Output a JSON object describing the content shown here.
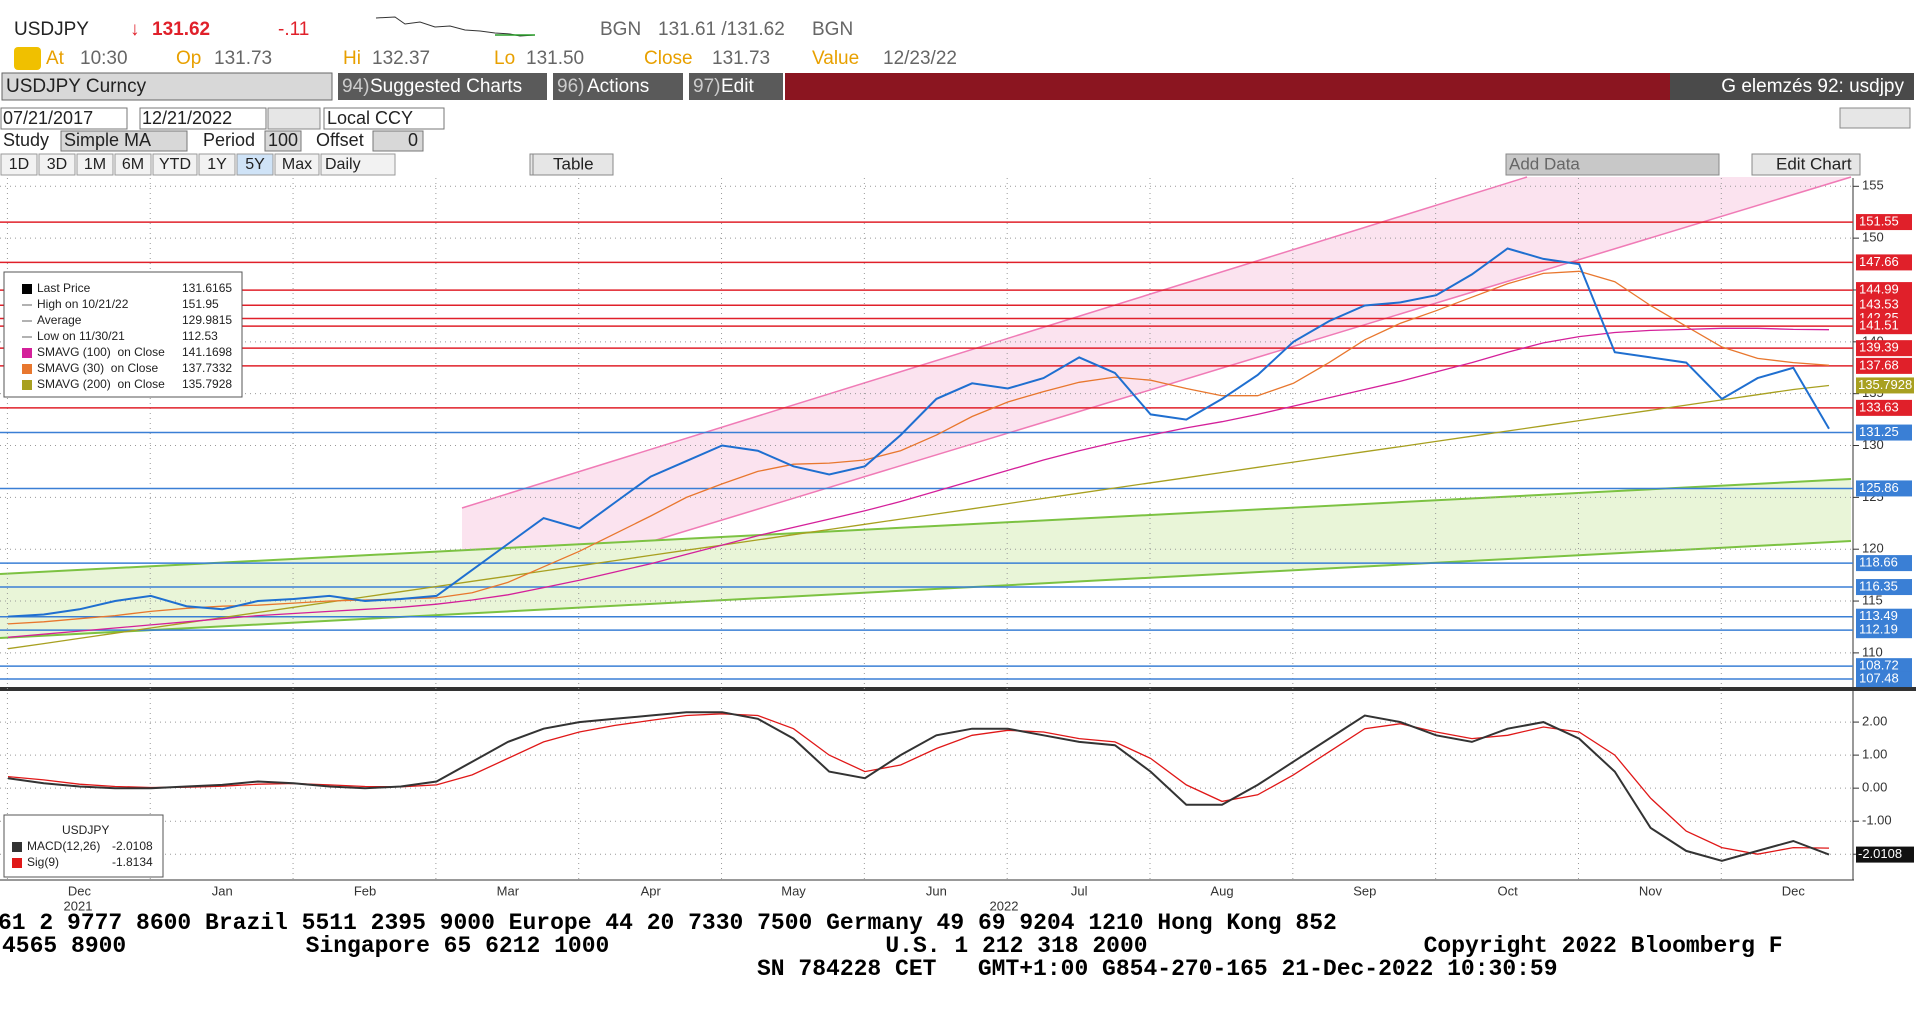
{
  "header": {
    "ticker": "USDJPY",
    "arrow": "↓",
    "price": "131.62",
    "change": "-.11",
    "source": "BGN",
    "bid_ask": "131.61 /131.62",
    "source2": "BGN",
    "at_label": "At",
    "at": "10:30",
    "op_label": "Op",
    "op": "131.73",
    "hi_label": "Hi",
    "hi": "132.37",
    "lo_label": "Lo",
    "lo": "131.50",
    "close_label": "Close",
    "close": "131.73",
    "value_label": "Value",
    "value": "12/23/22"
  },
  "toolbar": {
    "security": "USDJPY Curncy",
    "buttons": [
      {
        "num": "94)",
        "label": "Suggested Charts"
      },
      {
        "num": "96)",
        "label": "Actions"
      },
      {
        "num": "97)",
        "label": "Edit"
      }
    ],
    "title": "G elemzés 92: usdjpy"
  },
  "controls": {
    "start": "07/21/2017",
    "end": "12/21/2022",
    "currency": "Local CCY",
    "study_label": "Study",
    "study": "Simple MA",
    "period_label": "Period",
    "period": "100",
    "offset_label": "Offset",
    "offset": "0",
    "ranges": [
      "1D",
      "3D",
      "1M",
      "6M",
      "YTD",
      "1Y",
      "5Y",
      "Max"
    ],
    "frequency": "Daily",
    "table": "Table",
    "add_data": "Add Data",
    "edit_chart": "Edit Chart"
  },
  "chart_data": [
    {
      "type": "line",
      "categories": [
        null,
        null,
        "Dec",
        null,
        null,
        null,
        "Jan",
        null,
        null,
        null,
        "Feb",
        null,
        null,
        null,
        "Mar",
        null,
        null,
        null,
        "Apr",
        null,
        null,
        null,
        "May",
        null,
        null,
        null,
        "Jun",
        null,
        null,
        null,
        "Jul",
        null,
        null,
        null,
        "Aug",
        null,
        null,
        null,
        "Sep",
        null,
        null,
        null,
        "Oct",
        null,
        null,
        null,
        "Nov",
        null,
        null,
        null,
        "Dec",
        null
      ],
      "year_labels": [
        "2021",
        "2022"
      ],
      "ylim": [
        107,
        155.8
      ],
      "yticks": [
        110,
        115,
        120,
        125,
        130,
        135,
        140,
        145,
        150,
        155
      ],
      "grid": true,
      "series": [
        {
          "name": "Last Price",
          "color": "#1f6fd0",
          "values": [
            113.5,
            113.7,
            114.2,
            115.0,
            115.5,
            114.5,
            114.2,
            115.0,
            115.2,
            115.5,
            115.0,
            115.2,
            115.5,
            118,
            120.5,
            123,
            122,
            124.5,
            127,
            128.5,
            130,
            129.5,
            128,
            127.2,
            128,
            131,
            134.5,
            136,
            135.5,
            136.5,
            138.5,
            137,
            133,
            132.5,
            134.5,
            136.8,
            140,
            142,
            143.5,
            143.8,
            144.5,
            146.5,
            149,
            148,
            147.5,
            139,
            138.5,
            138,
            134.5,
            136.5,
            137.5,
            131.6165
          ]
        },
        {
          "name": "SMAVG (100)  on Close",
          "color": "#d4209a",
          "values": [
            111.5,
            111.8,
            112.1,
            112.4,
            112.7,
            113,
            113.3,
            113.6,
            113.8,
            114,
            114.2,
            114.4,
            114.7,
            115.1,
            115.6,
            116.3,
            117,
            117.8,
            118.6,
            119.5,
            120.4,
            121.3,
            122.1,
            122.9,
            123.7,
            124.6,
            125.6,
            126.6,
            127.6,
            128.6,
            129.5,
            130.3,
            131,
            131.7,
            132.3,
            133,
            133.8,
            134.6,
            135.4,
            136.2,
            137.1,
            138,
            139,
            139.9,
            140.5,
            140.9,
            141.1,
            141.2,
            141.3,
            141.3,
            141.2,
            141.1698
          ]
        },
        {
          "name": "SMAVG (30)  on Close",
          "color": "#e8772e",
          "values": [
            112.8,
            113.0,
            113.3,
            113.6,
            114,
            114.3,
            114.5,
            114.6,
            114.8,
            115,
            115.1,
            115.2,
            115.3,
            115.8,
            116.8,
            118.3,
            119.8,
            121.5,
            123.2,
            125,
            126.3,
            127.5,
            128.2,
            128.3,
            128.6,
            129.5,
            131,
            132.8,
            134.2,
            135.2,
            136.1,
            136.6,
            136.3,
            135.5,
            134.8,
            134.8,
            136,
            138,
            140.2,
            141.8,
            143,
            144.3,
            145.6,
            146.6,
            146.8,
            145.8,
            143.5,
            141.5,
            139.5,
            138.4,
            138.0,
            137.7332
          ]
        },
        {
          "name": "SMAVG (200)  on Close",
          "color": "#a8a020",
          "values": [
            110.4,
            110.9,
            111.4,
            111.9,
            112.4,
            112.9,
            113.4,
            113.9,
            114.4,
            114.9,
            115.4,
            115.9,
            116.4,
            116.9,
            117.4,
            117.9,
            118.4,
            118.9,
            119.4,
            119.9,
            120.4,
            120.9,
            121.4,
            121.9,
            122.4,
            122.9,
            123.4,
            123.9,
            124.4,
            124.9,
            125.4,
            125.9,
            126.4,
            126.9,
            127.4,
            127.9,
            128.4,
            128.9,
            129.4,
            129.9,
            130.4,
            130.9,
            131.4,
            131.9,
            132.4,
            132.9,
            133.4,
            133.9,
            134.4,
            134.9,
            135.4,
            135.7928
          ]
        }
      ],
      "stats": [
        {
          "label": "High on 10/21/22",
          "value": "151.95"
        },
        {
          "label": "Average",
          "value": "129.9815"
        },
        {
          "label": "Low on 11/30/21",
          "value": "112.53"
        }
      ],
      "levels": [
        {
          "value": 151.55,
          "color": "#e0202a"
        },
        {
          "value": 147.66,
          "color": "#e0202a"
        },
        {
          "value": 144.99,
          "color": "#e0202a"
        },
        {
          "value": 143.53,
          "color": "#e0202a"
        },
        {
          "value": 142.25,
          "color": "#e0202a"
        },
        {
          "value": 141.51,
          "color": "#e0202a"
        },
        {
          "value": 139.39,
          "color": "#e0202a"
        },
        {
          "value": 137.68,
          "color": "#e0202a"
        },
        {
          "value": 133.63,
          "color": "#e0202a"
        },
        {
          "value": 131.25,
          "color": "#3a7fd5"
        },
        {
          "value": 125.86,
          "color": "#3a7fd5"
        },
        {
          "value": 118.66,
          "color": "#3a7fd5"
        },
        {
          "value": 116.35,
          "color": "#3a7fd5"
        },
        {
          "value": 113.49,
          "color": "#3a7fd5"
        },
        {
          "value": 112.19,
          "color": "#3a7fd5"
        },
        {
          "value": 108.72,
          "color": "#3a7fd5"
        },
        {
          "value": 107.48,
          "color": "#3a7fd5"
        }
      ]
    },
    {
      "type": "line",
      "title": "USDJPY",
      "ylim": [
        -2.78,
        2.85
      ],
      "yticks": [
        {
          "value": 2,
          "label": "2.00"
        },
        {
          "value": 1,
          "label": "1.00"
        },
        {
          "value": 0,
          "label": "0.00"
        },
        {
          "value": -1,
          "label": "-1.00"
        },
        {
          "value": -2,
          "label": "-2.00"
        }
      ],
      "grid": true,
      "series": [
        {
          "name": "MACD(12,26)",
          "color": "#333333",
          "values": [
            0.3,
            0.15,
            0.05,
            0.0,
            0.0,
            0.05,
            0.1,
            0.2,
            0.15,
            0.05,
            0.0,
            0.05,
            0.2,
            0.8,
            1.4,
            1.8,
            2.0,
            2.1,
            2.2,
            2.3,
            2.3,
            2.1,
            1.5,
            0.5,
            0.3,
            1.0,
            1.6,
            1.8,
            1.8,
            1.6,
            1.4,
            1.3,
            0.5,
            -0.5,
            -0.5,
            0.1,
            0.8,
            1.5,
            2.2,
            2.0,
            1.6,
            1.4,
            1.8,
            2.0,
            1.5,
            0.5,
            -1.2,
            -1.9,
            -2.2,
            -1.9,
            -1.6,
            -2.0108
          ]
        },
        {
          "name": "Sig(9)",
          "color": "#e01818",
          "values": [
            0.35,
            0.25,
            0.12,
            0.05,
            0.02,
            0.03,
            0.06,
            0.12,
            0.14,
            0.1,
            0.05,
            0.04,
            0.1,
            0.4,
            0.9,
            1.4,
            1.7,
            1.9,
            2.05,
            2.2,
            2.25,
            2.2,
            1.8,
            1.0,
            0.5,
            0.7,
            1.2,
            1.6,
            1.75,
            1.7,
            1.5,
            1.4,
            0.9,
            0.1,
            -0.4,
            -0.2,
            0.4,
            1.1,
            1.8,
            1.95,
            1.7,
            1.5,
            1.6,
            1.85,
            1.7,
            1.0,
            -0.3,
            -1.3,
            -1.8,
            -2.0,
            -1.8,
            -1.8134
          ]
        }
      ]
    }
  ],
  "ticker_tape": [
    "61 2 9777 8600 Brazil 5511 2395 9000 Europe 44 20 7330 7500 Germany 49 69 9204 1210 Hong Kong 852",
    "4565 8900             Singapore 65 6212 1000                    U.S. 1 212 318 2000                    Copyright 2022 Bloomberg F",
    "SN 784228 CET   GMT+1:00 G854-270-165 21-Dec-2022 10:30:59"
  ]
}
